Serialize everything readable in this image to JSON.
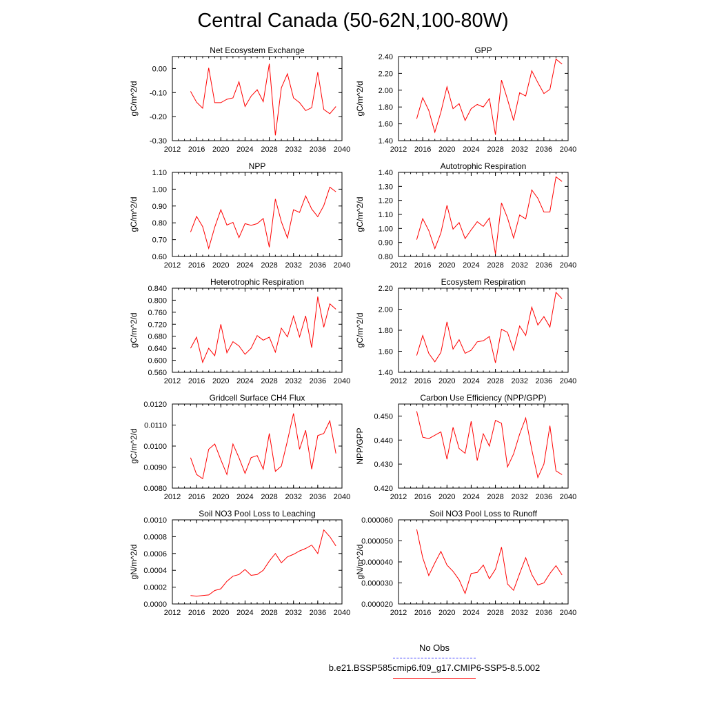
{
  "title": "Central Canada (50-62N,100-80W)",
  "legend": {
    "obs_label": "No Obs",
    "obs_color": "#3a3aff",
    "model_label": "b.e21.BSSP585cmip6.f09_g17.CMIP6-SSP5-8.5.002",
    "model_color": "#ff0000"
  },
  "chart_data": [
    {
      "type": "line",
      "title": "Net Ecosystem Exchange",
      "ylabel": "gC/m^2/d",
      "xlim": [
        2012,
        2040
      ],
      "ylim": [
        -0.3,
        0.05
      ],
      "x_ticks": [
        "2012",
        "2016",
        "2020",
        "2024",
        "2028",
        "2032",
        "2036",
        "2040"
      ],
      "y_ticks": [
        -0.3,
        -0.2,
        -0.1,
        0.0
      ],
      "y_tick_labels": [
        "-0.30",
        "-0.20",
        "-0.10",
        "0.00"
      ],
      "series": [
        {
          "color": "#ff0000",
          "x": [
            2015,
            2016,
            2017,
            2018,
            2019,
            2020,
            2021,
            2022,
            2023,
            2024,
            2025,
            2026,
            2027,
            2028,
            2029,
            2030,
            2031,
            2032,
            2033,
            2034,
            2035,
            2036,
            2037,
            2038,
            2039
          ],
          "values": [
            -0.095,
            -0.14,
            -0.165,
            0.003,
            -0.142,
            -0.142,
            -0.128,
            -0.122,
            -0.055,
            -0.158,
            -0.115,
            -0.088,
            -0.138,
            0.02,
            -0.278,
            -0.08,
            -0.022,
            -0.122,
            -0.142,
            -0.175,
            -0.163,
            -0.015,
            -0.17,
            -0.188,
            -0.158
          ]
        }
      ]
    },
    {
      "type": "line",
      "title": "GPP",
      "ylabel": "gC/m^2/d",
      "xlim": [
        2012,
        2040
      ],
      "ylim": [
        1.4,
        2.4
      ],
      "x_ticks": [
        "2012",
        "2016",
        "2020",
        "2024",
        "2028",
        "2032",
        "2036",
        "2040"
      ],
      "y_ticks": [
        1.4,
        1.6,
        1.8,
        2.0,
        2.2,
        2.4
      ],
      "y_tick_labels": [
        "1.40",
        "1.60",
        "1.80",
        "2.00",
        "2.20",
        "2.40"
      ],
      "series": [
        {
          "color": "#ff0000",
          "x": [
            2015,
            2016,
            2017,
            2018,
            2019,
            2020,
            2021,
            2022,
            2023,
            2024,
            2025,
            2026,
            2027,
            2028,
            2029,
            2030,
            2031,
            2032,
            2033,
            2034,
            2035,
            2036,
            2037,
            2038,
            2039
          ],
          "values": [
            1.66,
            1.91,
            1.76,
            1.5,
            1.74,
            2.04,
            1.78,
            1.84,
            1.64,
            1.78,
            1.83,
            1.8,
            1.9,
            1.47,
            2.12,
            1.89,
            1.64,
            1.97,
            1.93,
            2.23,
            2.09,
            1.96,
            2.01,
            2.37,
            2.31
          ]
        }
      ]
    },
    {
      "type": "line",
      "title": "NPP",
      "ylabel": "gC/m^2/d",
      "xlim": [
        2012,
        2040
      ],
      "ylim": [
        0.6,
        1.1
      ],
      "x_ticks": [
        "2012",
        "2016",
        "2020",
        "2024",
        "2028",
        "2032",
        "2036",
        "2040"
      ],
      "y_ticks": [
        0.6,
        0.7,
        0.8,
        0.9,
        1.0,
        1.1
      ],
      "y_tick_labels": [
        "0.60",
        "0.70",
        "0.80",
        "0.90",
        "1.00",
        "1.10"
      ],
      "series": [
        {
          "color": "#ff0000",
          "x": [
            2015,
            2016,
            2017,
            2018,
            2019,
            2020,
            2021,
            2022,
            2023,
            2024,
            2025,
            2026,
            2027,
            2028,
            2029,
            2030,
            2031,
            2032,
            2033,
            2034,
            2035,
            2036,
            2037,
            2038,
            2039
          ],
          "values": [
            0.745,
            0.838,
            0.778,
            0.648,
            0.775,
            0.878,
            0.787,
            0.803,
            0.712,
            0.795,
            0.785,
            0.795,
            0.826,
            0.655,
            0.942,
            0.806,
            0.71,
            0.878,
            0.862,
            0.96,
            0.882,
            0.837,
            0.902,
            1.012,
            0.985
          ]
        }
      ]
    },
    {
      "type": "line",
      "title": "Autotrophic Respiration",
      "ylabel": "gC/m^2/d",
      "xlim": [
        2012,
        2040
      ],
      "ylim": [
        0.8,
        1.4
      ],
      "x_ticks": [
        "2012",
        "2016",
        "2020",
        "2024",
        "2028",
        "2032",
        "2036",
        "2040"
      ],
      "y_ticks": [
        0.8,
        0.9,
        1.0,
        1.1,
        1.2,
        1.3,
        1.4
      ],
      "y_tick_labels": [
        "0.80",
        "0.90",
        "1.00",
        "1.10",
        "1.20",
        "1.30",
        "1.40"
      ],
      "series": [
        {
          "color": "#ff0000",
          "x": [
            2015,
            2016,
            2017,
            2018,
            2019,
            2020,
            2021,
            2022,
            2023,
            2024,
            2025,
            2026,
            2027,
            2028,
            2029,
            2030,
            2031,
            2032,
            2033,
            2034,
            2035,
            2036,
            2037,
            2038,
            2039
          ],
          "values": [
            0.92,
            1.07,
            0.985,
            0.856,
            0.968,
            1.165,
            0.995,
            1.042,
            0.928,
            0.99,
            1.048,
            1.015,
            1.074,
            0.818,
            1.182,
            1.075,
            0.932,
            1.096,
            1.068,
            1.275,
            1.215,
            1.117,
            1.117,
            1.368,
            1.335
          ]
        }
      ]
    },
    {
      "type": "line",
      "title": "Heterotrophic Respiration",
      "ylabel": "gC/m^2/d",
      "xlim": [
        2012,
        2040
      ],
      "ylim": [
        0.56,
        0.84
      ],
      "x_ticks": [
        "2012",
        "2016",
        "2020",
        "2024",
        "2028",
        "2032",
        "2036",
        "2040"
      ],
      "y_ticks": [
        0.56,
        0.6,
        0.64,
        0.68,
        0.72,
        0.76,
        0.8,
        0.84
      ],
      "y_tick_labels": [
        "0.560",
        "0.600",
        "0.640",
        "0.680",
        "0.720",
        "0.760",
        "0.800",
        "0.840"
      ],
      "series": [
        {
          "color": "#ff0000",
          "x": [
            2015,
            2016,
            2017,
            2018,
            2019,
            2020,
            2021,
            2022,
            2023,
            2024,
            2025,
            2026,
            2027,
            2028,
            2029,
            2030,
            2031,
            2032,
            2033,
            2034,
            2035,
            2036,
            2037,
            2038,
            2039
          ],
          "values": [
            0.64,
            0.677,
            0.593,
            0.64,
            0.615,
            0.72,
            0.625,
            0.662,
            0.648,
            0.62,
            0.64,
            0.682,
            0.667,
            0.677,
            0.627,
            0.707,
            0.678,
            0.747,
            0.678,
            0.748,
            0.642,
            0.812,
            0.71,
            0.788,
            0.77
          ]
        }
      ]
    },
    {
      "type": "line",
      "title": "Ecosystem Respiration",
      "ylabel": "gC/m^2/d",
      "xlim": [
        2012,
        2040
      ],
      "ylim": [
        1.4,
        2.2
      ],
      "x_ticks": [
        "2012",
        "2016",
        "2020",
        "2024",
        "2028",
        "2032",
        "2036",
        "2040"
      ],
      "y_ticks": [
        1.4,
        1.6,
        1.8,
        2.0,
        2.2
      ],
      "y_tick_labels": [
        "1.40",
        "1.60",
        "1.80",
        "2.00",
        "2.20"
      ],
      "series": [
        {
          "color": "#ff0000",
          "x": [
            2015,
            2016,
            2017,
            2018,
            2019,
            2020,
            2021,
            2022,
            2023,
            2024,
            2025,
            2026,
            2027,
            2028,
            2029,
            2030,
            2031,
            2032,
            2033,
            2034,
            2035,
            2036,
            2037,
            2038,
            2039
          ],
          "values": [
            1.56,
            1.75,
            1.58,
            1.5,
            1.59,
            1.88,
            1.62,
            1.71,
            1.58,
            1.61,
            1.69,
            1.7,
            1.74,
            1.49,
            1.81,
            1.78,
            1.61,
            1.84,
            1.75,
            2.02,
            1.85,
            1.93,
            1.83,
            2.16,
            2.1
          ]
        }
      ]
    },
    {
      "type": "line",
      "title": "Gridcell Surface CH4 Flux",
      "ylabel": "gC/m^2/d",
      "xlim": [
        2012,
        2040
      ],
      "ylim": [
        0.008,
        0.012
      ],
      "x_ticks": [
        "2012",
        "2016",
        "2020",
        "2024",
        "2028",
        "2032",
        "2036",
        "2040"
      ],
      "y_ticks": [
        0.008,
        0.009,
        0.01,
        0.011,
        0.012
      ],
      "y_tick_labels": [
        "0.0080",
        "0.0090",
        "0.0100",
        "0.0110",
        "0.0120"
      ],
      "series": [
        {
          "color": "#ff0000",
          "x": [
            2015,
            2016,
            2017,
            2018,
            2019,
            2020,
            2021,
            2022,
            2023,
            2024,
            2025,
            2026,
            2027,
            2028,
            2029,
            2030,
            2031,
            2032,
            2033,
            2034,
            2035,
            2036,
            2037,
            2038,
            2039
          ],
          "values": [
            0.00945,
            0.00865,
            0.00845,
            0.00985,
            0.0101,
            0.00935,
            0.00865,
            0.0101,
            0.00945,
            0.0087,
            0.00945,
            0.00955,
            0.0089,
            0.0106,
            0.0088,
            0.00905,
            0.01025,
            0.01155,
            0.00985,
            0.01075,
            0.0089,
            0.0105,
            0.0106,
            0.0112,
            0.00965
          ]
        }
      ]
    },
    {
      "type": "line",
      "title": "Carbon Use Efficiency (NPP/GPP)",
      "ylabel": "NPP/GPP",
      "xlim": [
        2012,
        2040
      ],
      "ylim": [
        0.42,
        0.455
      ],
      "x_ticks": [
        "2012",
        "2016",
        "2020",
        "2024",
        "2028",
        "2032",
        "2036",
        "2040"
      ],
      "y_ticks": [
        0.42,
        0.43,
        0.44,
        0.45
      ],
      "y_tick_labels": [
        "0.420",
        "0.430",
        "0.440",
        "0.450"
      ],
      "series": [
        {
          "color": "#ff0000",
          "x": [
            2015,
            2016,
            2017,
            2018,
            2019,
            2020,
            2021,
            2022,
            2023,
            2024,
            2025,
            2026,
            2027,
            2028,
            2029,
            2030,
            2031,
            2032,
            2033,
            2034,
            2035,
            2036,
            2037,
            2038,
            2039
          ],
          "values": [
            0.452,
            0.4412,
            0.4406,
            0.442,
            0.4434,
            0.432,
            0.4453,
            0.4365,
            0.4345,
            0.4478,
            0.4315,
            0.4426,
            0.4375,
            0.4482,
            0.447,
            0.4288,
            0.4342,
            0.4425,
            0.4492,
            0.436,
            0.4244,
            0.43,
            0.446,
            0.4272,
            0.4256
          ]
        }
      ]
    },
    {
      "type": "line",
      "title": "Soil NO3 Pool Loss to Leaching",
      "ylabel": "gN/m^2/d",
      "xlim": [
        2012,
        2040
      ],
      "ylim": [
        0.0,
        0.001
      ],
      "x_ticks": [
        "2012",
        "2016",
        "2020",
        "2024",
        "2028",
        "2032",
        "2036",
        "2040"
      ],
      "y_ticks": [
        0.0,
        0.0002,
        0.0004,
        0.0006,
        0.0008,
        0.001
      ],
      "y_tick_labels": [
        "0.0000",
        "0.0002",
        "0.0004",
        "0.0006",
        "0.0008",
        "0.0010"
      ],
      "series": [
        {
          "color": "#ff0000",
          "x": [
            2015,
            2016,
            2017,
            2018,
            2019,
            2020,
            2021,
            2022,
            2023,
            2024,
            2025,
            2026,
            2027,
            2028,
            2029,
            2030,
            2031,
            2032,
            2033,
            2034,
            2035,
            2036,
            2037,
            2038,
            2039
          ],
          "values": [
            0.0001,
            9.2e-05,
            0.0001,
            0.000107,
            0.00016,
            0.00018,
            0.00027,
            0.00033,
            0.00035,
            0.00041,
            0.00034,
            0.00035,
            0.0004,
            0.00051,
            0.0006,
            0.00049,
            0.00056,
            0.00059,
            0.00063,
            0.00066,
            0.0007,
            0.0006,
            0.00088,
            0.0008,
            0.00069
          ]
        }
      ]
    },
    {
      "type": "line",
      "title": "Soil NO3 Pool Loss to Runoff",
      "ylabel": "gN/m^2/d",
      "xlim": [
        2012,
        2040
      ],
      "ylim": [
        2e-05,
        6e-05
      ],
      "x_ticks": [
        "2012",
        "2016",
        "2020",
        "2024",
        "2028",
        "2032",
        "2036",
        "2040"
      ],
      "y_ticks": [
        2e-05,
        3e-05,
        4e-05,
        5e-05,
        6e-05
      ],
      "y_tick_labels": [
        "0.000020",
        "0.000030",
        "0.000040",
        "0.000050",
        "0.000060"
      ],
      "series": [
        {
          "color": "#ff0000",
          "x": [
            2015,
            2016,
            2017,
            2018,
            2019,
            2020,
            2021,
            2022,
            2023,
            2024,
            2025,
            2026,
            2027,
            2028,
            2029,
            2030,
            2031,
            2032,
            2033,
            2034,
            2035,
            2036,
            2037,
            2038,
            2039
          ],
          "values": [
            5.55e-05,
            4.2e-05,
            3.35e-05,
            3.95e-05,
            4.5e-05,
            3.85e-05,
            3.55e-05,
            3.15e-05,
            2.5e-05,
            3.45e-05,
            3.5e-05,
            3.85e-05,
            3.2e-05,
            3.65e-05,
            4.7e-05,
            2.95e-05,
            2.65e-05,
            3.45e-05,
            4.2e-05,
            3.4e-05,
            2.9e-05,
            3e-05,
            3.45e-05,
            3.82e-05,
            3.38e-05
          ]
        }
      ]
    }
  ]
}
